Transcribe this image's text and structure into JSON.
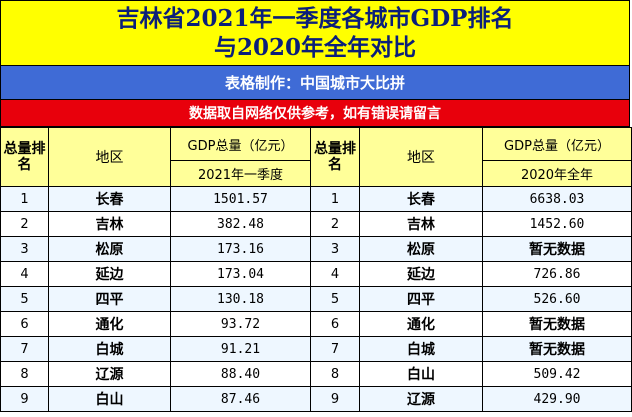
{
  "title": {
    "line1": "吉林省2021年一季度各城市GDP排名",
    "line2": "与2020年全年对比"
  },
  "maker": "表格制作：中国城市大比拼",
  "note": "数据取自网络仅供参考，如有错误请留言",
  "header": {
    "rank_label": "总量排名",
    "region_label": "地区",
    "gdp_label": "GDP总量（亿元）",
    "left_period": "2021年一季度",
    "right_period": "2020年全年"
  },
  "rows": [
    {
      "rank_left": "1",
      "region_left": "长春",
      "gdp_left": "1501.57",
      "rank_right": "1",
      "region_right": "长春",
      "gdp_right": "6638.03"
    },
    {
      "rank_left": "2",
      "region_left": "吉林",
      "gdp_left": "382.48",
      "rank_right": "2",
      "region_right": "吉林",
      "gdp_right": "1452.60"
    },
    {
      "rank_left": "3",
      "region_left": "松原",
      "gdp_left": "173.16",
      "rank_right": "3",
      "region_right": "松原",
      "gdp_right": "暂无数据"
    },
    {
      "rank_left": "4",
      "region_left": "延边",
      "gdp_left": "173.04",
      "rank_right": "4",
      "region_right": "延边",
      "gdp_right": "726.86"
    },
    {
      "rank_left": "5",
      "region_left": "四平",
      "gdp_left": "130.18",
      "rank_right": "5",
      "region_right": "四平",
      "gdp_right": "526.60"
    },
    {
      "rank_left": "6",
      "region_left": "通化",
      "gdp_left": "93.72",
      "rank_right": "6",
      "region_right": "通化",
      "gdp_right": "暂无数据"
    },
    {
      "rank_left": "7",
      "region_left": "白城",
      "gdp_left": "91.21",
      "rank_right": "7",
      "region_right": "白城",
      "gdp_right": "暂无数据"
    },
    {
      "rank_left": "8",
      "region_left": "辽源",
      "gdp_left": "88.40",
      "rank_right": "8",
      "region_right": "白山",
      "gdp_right": "509.42"
    },
    {
      "rank_left": "9",
      "region_left": "白山",
      "gdp_left": "87.46",
      "rank_right": "9",
      "region_right": "辽源",
      "gdp_right": "429.90"
    }
  ]
}
